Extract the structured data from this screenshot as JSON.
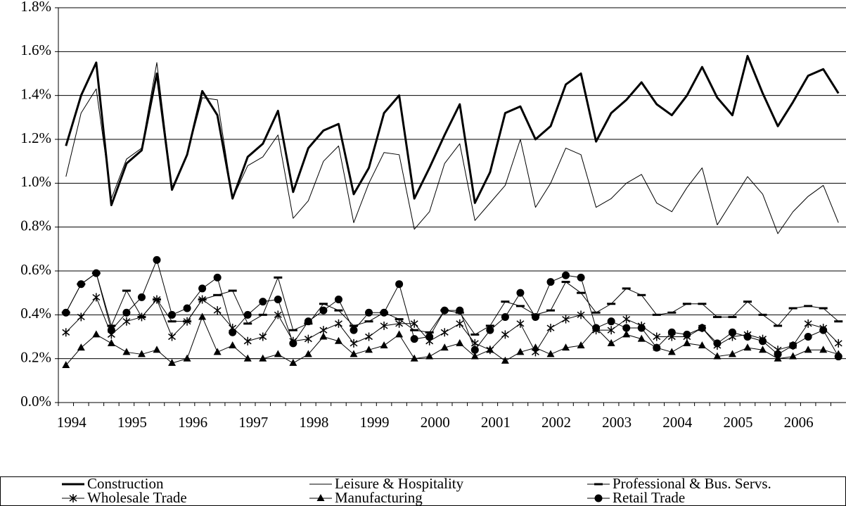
{
  "chart_data": {
    "type": "line",
    "categories": [
      "1994",
      null,
      null,
      null,
      "1995",
      null,
      null,
      null,
      "1996",
      null,
      null,
      null,
      "1997",
      null,
      null,
      null,
      "1998",
      null,
      null,
      null,
      "1999",
      null,
      null,
      null,
      "2000",
      null,
      null,
      null,
      "2001",
      null,
      null,
      null,
      "2002",
      null,
      null,
      null,
      "2003",
      null,
      null,
      null,
      "2004",
      null,
      null,
      null,
      "2005",
      null,
      null,
      null,
      "2006",
      null,
      null,
      null
    ],
    "ylim": [
      0,
      1.8
    ],
    "yticks": [
      {
        "value": 0,
        "label": "0.0%"
      },
      {
        "value": 0.2,
        "label": "0.2%"
      },
      {
        "value": 0.4,
        "label": "0.4%"
      },
      {
        "value": 0.6,
        "label": "0.6%"
      },
      {
        "value": 0.8,
        "label": "0.8%"
      },
      {
        "value": 1.0,
        "label": "1.0%"
      },
      {
        "value": 1.2,
        "label": "1.2%"
      },
      {
        "value": 1.4,
        "label": "1.4%"
      },
      {
        "value": 1.6,
        "label": "1.6%"
      },
      {
        "value": 1.8,
        "label": "1.8%"
      }
    ],
    "grid": true,
    "legend": "bottom",
    "series": [
      {
        "name": "Construction",
        "color": "#000000",
        "line_width": 3,
        "marker": "none",
        "values": [
          1.17,
          1.4,
          1.55,
          0.9,
          1.09,
          1.15,
          1.5,
          0.97,
          1.13,
          1.42,
          1.31,
          0.93,
          1.12,
          1.18,
          1.33,
          0.96,
          1.16,
          1.24,
          1.27,
          0.95,
          1.07,
          1.32,
          1.4,
          0.93,
          1.07,
          1.22,
          1.36,
          0.91,
          1.05,
          1.32,
          1.35,
          1.2,
          1.26,
          1.45,
          1.5,
          1.19,
          1.32,
          1.38,
          1.46,
          1.36,
          1.31,
          1.4,
          1.53,
          1.39,
          1.31,
          1.58,
          1.41,
          1.26,
          1.37,
          1.49,
          1.52,
          1.41
        ]
      },
      {
        "name": "Leisure & Hospitality",
        "color": "#000000",
        "line_width": 1,
        "marker": "none",
        "values": [
          1.03,
          1.32,
          1.43,
          0.93,
          1.11,
          1.16,
          1.55,
          0.98,
          1.13,
          1.39,
          1.38,
          0.93,
          1.08,
          1.12,
          1.22,
          0.84,
          0.92,
          1.1,
          1.17,
          0.82,
          1.0,
          1.14,
          1.13,
          0.79,
          0.87,
          1.09,
          1.18,
          0.83,
          0.91,
          0.99,
          1.2,
          0.89,
          1.0,
          1.16,
          1.13,
          0.89,
          0.93,
          1.0,
          1.04,
          0.91,
          0.87,
          0.98,
          1.07,
          0.81,
          0.92,
          1.03,
          0.95,
          0.77,
          0.87,
          0.94,
          0.99,
          0.82
        ]
      },
      {
        "name": "Professional & Bus. Servs.",
        "color": "#000000",
        "line_width": 1,
        "marker": "dash",
        "values": [
          0.41,
          0.54,
          0.59,
          0.35,
          0.51,
          0.39,
          0.47,
          0.37,
          0.37,
          0.47,
          0.49,
          0.51,
          0.36,
          0.4,
          0.57,
          0.33,
          0.36,
          0.45,
          0.42,
          0.35,
          0.37,
          0.41,
          0.38,
          0.33,
          0.32,
          0.42,
          0.41,
          0.31,
          0.35,
          0.46,
          0.44,
          0.4,
          0.42,
          0.55,
          0.5,
          0.41,
          0.45,
          0.52,
          0.49,
          0.4,
          0.41,
          0.45,
          0.45,
          0.39,
          0.39,
          0.46,
          0.4,
          0.35,
          0.43,
          0.44,
          0.43,
          0.37
        ]
      },
      {
        "name": "Wholesale Trade",
        "color": "#000000",
        "line_width": 1,
        "marker": "star",
        "values": [
          0.32,
          0.39,
          0.48,
          0.31,
          0.37,
          0.39,
          0.47,
          0.3,
          0.37,
          0.47,
          0.42,
          0.34,
          0.28,
          0.3,
          0.4,
          0.28,
          0.29,
          0.33,
          0.36,
          0.27,
          0.3,
          0.35,
          0.36,
          0.36,
          0.28,
          0.32,
          0.36,
          0.27,
          0.24,
          0.31,
          0.36,
          0.23,
          0.34,
          0.38,
          0.4,
          0.33,
          0.33,
          0.38,
          0.35,
          0.3,
          0.3,
          0.3,
          0.34,
          0.26,
          0.3,
          0.31,
          0.29,
          0.24,
          0.26,
          0.36,
          0.34,
          0.27
        ]
      },
      {
        "name": "Manufacturing",
        "color": "#000000",
        "line_width": 1,
        "marker": "triangle",
        "values": [
          0.17,
          0.25,
          0.31,
          0.27,
          0.23,
          0.22,
          0.24,
          0.18,
          0.2,
          0.39,
          0.23,
          0.26,
          0.2,
          0.2,
          0.22,
          0.18,
          0.22,
          0.3,
          0.28,
          0.22,
          0.24,
          0.26,
          0.31,
          0.2,
          0.21,
          0.25,
          0.27,
          0.21,
          0.24,
          0.19,
          0.23,
          0.25,
          0.22,
          0.25,
          0.26,
          0.34,
          0.27,
          0.31,
          0.29,
          0.25,
          0.23,
          0.27,
          0.26,
          0.21,
          0.22,
          0.25,
          0.24,
          0.2,
          0.21,
          0.24,
          0.24,
          0.22
        ]
      },
      {
        "name": "Retail Trade",
        "color": "#000000",
        "line_width": 1,
        "marker": "circle",
        "values": [
          0.41,
          0.54,
          0.59,
          0.33,
          0.41,
          0.48,
          0.65,
          0.4,
          0.43,
          0.52,
          0.57,
          0.32,
          0.4,
          0.46,
          0.47,
          0.27,
          0.37,
          0.42,
          0.47,
          0.33,
          0.41,
          0.41,
          0.54,
          0.29,
          0.3,
          0.42,
          0.42,
          0.24,
          0.33,
          0.39,
          0.5,
          0.39,
          0.55,
          0.58,
          0.57,
          0.34,
          0.37,
          0.34,
          0.34,
          0.25,
          0.32,
          0.31,
          0.34,
          0.27,
          0.32,
          0.3,
          0.28,
          0.22,
          0.26,
          0.3,
          0.33,
          0.21
        ]
      }
    ]
  }
}
